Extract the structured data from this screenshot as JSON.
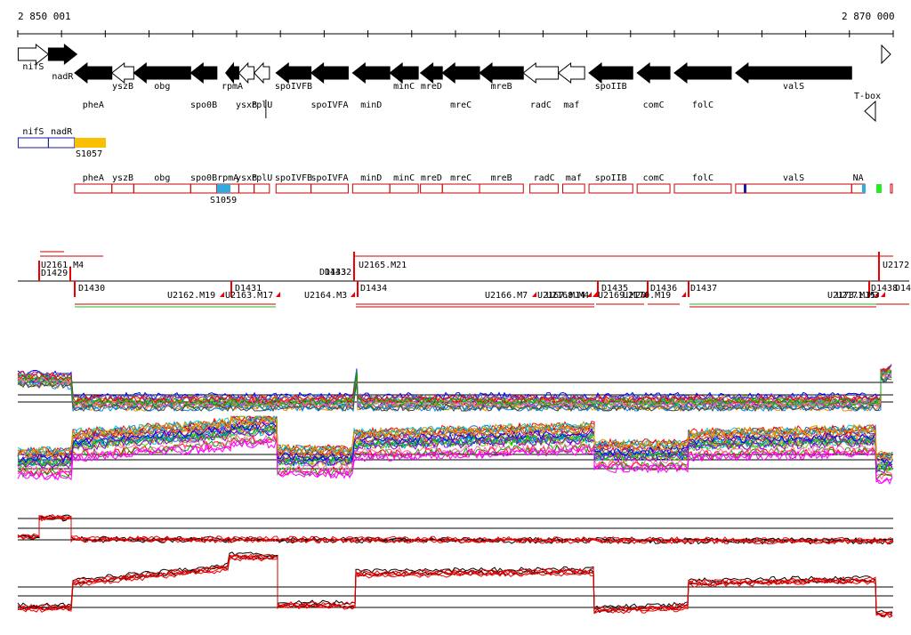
{
  "ruler": {
    "start_label": "2 850 001",
    "end_label": "2 870 000",
    "start": 2850001,
    "end": 2870000
  },
  "genes": [
    {
      "name": "nifS",
      "start": 2850010,
      "end": 2850700,
      "strand": "+",
      "fill": "white",
      "label_row": "above"
    },
    {
      "name": "nadR",
      "start": 2850700,
      "end": 2851350,
      "strand": "+",
      "fill": "black",
      "label_row": "below"
    },
    {
      "name": "pheA",
      "start": 2851300,
      "end": 2852150,
      "strand": "-",
      "fill": "black",
      "label_row": "bottom"
    },
    {
      "name": "yszB",
      "start": 2852150,
      "end": 2852650,
      "strand": "-",
      "fill": "white",
      "label_row": "below"
    },
    {
      "name": "obg",
      "start": 2852650,
      "end": 2853950,
      "strand": "-",
      "fill": "black",
      "label_row": "below"
    },
    {
      "name": "spo0B",
      "start": 2853950,
      "end": 2854550,
      "strand": "-",
      "fill": "black",
      "label_row": "bottom"
    },
    {
      "name": "rpmA",
      "start": 2854750,
      "end": 2855050,
      "strand": "-",
      "fill": "black",
      "label_row": "below"
    },
    {
      "name": "ysxB",
      "start": 2855050,
      "end": 2855400,
      "strand": "-",
      "fill": "white",
      "label_row": "bottom"
    },
    {
      "name": "rplU",
      "start": 2855400,
      "end": 2855750,
      "strand": "-",
      "fill": "white",
      "label_row": "lowest"
    },
    {
      "name": "spoIVFB",
      "start": 2855900,
      "end": 2856700,
      "strand": "-",
      "fill": "black",
      "label_row": "below"
    },
    {
      "name": "spoIVFA",
      "start": 2856700,
      "end": 2857550,
      "strand": "-",
      "fill": "black",
      "label_row": "bottom"
    },
    {
      "name": "minD",
      "start": 2857650,
      "end": 2858500,
      "strand": "-",
      "fill": "black",
      "label_row": "bottom"
    },
    {
      "name": "minC",
      "start": 2858500,
      "end": 2859150,
      "strand": "-",
      "fill": "black",
      "label_row": "below"
    },
    {
      "name": "mreD",
      "start": 2859200,
      "end": 2859700,
      "strand": "-",
      "fill": "black",
      "label_row": "below"
    },
    {
      "name": "mreC",
      "start": 2859700,
      "end": 2860550,
      "strand": "-",
      "fill": "black",
      "label_row": "bottom"
    },
    {
      "name": "mreB",
      "start": 2860550,
      "end": 2861550,
      "strand": "-",
      "fill": "black",
      "label_row": "below"
    },
    {
      "name": "radC",
      "start": 2861550,
      "end": 2862350,
      "strand": "-",
      "fill": "white",
      "label_row": "bottom"
    },
    {
      "name": "maf",
      "start": 2862350,
      "end": 2862950,
      "strand": "-",
      "fill": "white",
      "label_row": "bottom"
    },
    {
      "name": "spoIIB",
      "start": 2863050,
      "end": 2864050,
      "strand": "-",
      "fill": "black",
      "label_row": "below"
    },
    {
      "name": "comC",
      "start": 2864150,
      "end": 2864900,
      "strand": "-",
      "fill": "black",
      "label_row": "bottom"
    },
    {
      "name": "folC",
      "start": 2865000,
      "end": 2866300,
      "strand": "-",
      "fill": "black",
      "label_row": "bottom"
    },
    {
      "name": "valS",
      "start": 2866400,
      "end": 2869050,
      "strand": "-",
      "fill": "black",
      "label_row": "below"
    }
  ],
  "tbox": {
    "label": "T-box"
  },
  "extra_box": {
    "label": "S1057"
  },
  "segments": [
    {
      "name": "nifS",
      "start": 2850010,
      "end": 2850700,
      "color": "#1a1aa6"
    },
    {
      "name": "nadR",
      "start": 2850700,
      "end": 2851300,
      "color": "#1a1aa6"
    }
  ],
  "annot_row": [
    {
      "name": "pheA",
      "start": 2851300,
      "end": 2852150
    },
    {
      "name": "yszB",
      "start": 2852150,
      "end": 2852650
    },
    {
      "name": "obg",
      "start": 2852650,
      "end": 2853950
    },
    {
      "name": "spo0B",
      "start": 2853950,
      "end": 2854550
    },
    {
      "name": "rpmA",
      "start": 2854550,
      "end": 2855050
    },
    {
      "name": "ysxB",
      "start": 2855050,
      "end": 2855400
    },
    {
      "name": "rplU",
      "start": 2855400,
      "end": 2855750
    },
    {
      "name": "spoIVFB",
      "start": 2855900,
      "end": 2856700
    },
    {
      "name": "spoIVFA",
      "start": 2856700,
      "end": 2857550
    },
    {
      "name": "minD",
      "start": 2857650,
      "end": 2858500
    },
    {
      "name": "minC",
      "start": 2858500,
      "end": 2859150
    },
    {
      "name": "mreD",
      "start": 2859200,
      "end": 2859700
    },
    {
      "name": "mreC",
      "start": 2859700,
      "end": 2860550
    },
    {
      "name": "mreB",
      "start": 2860550,
      "end": 2861550
    },
    {
      "name": "radC",
      "start": 2861700,
      "end": 2862350
    },
    {
      "name": "maf",
      "start": 2862450,
      "end": 2862950
    },
    {
      "name": "spoIIB",
      "start": 2863050,
      "end": 2864050
    },
    {
      "name": "comC",
      "start": 2864150,
      "end": 2864900
    },
    {
      "name": "folC",
      "start": 2865000,
      "end": 2866300
    },
    {
      "name": "valS",
      "start": 2866400,
      "end": 2869050
    },
    {
      "name": "NA",
      "start": 2869050,
      "end": 2869350
    }
  ],
  "s1059": {
    "label": "S1059"
  },
  "transcripts_upper": [
    {
      "name": "U2161.M4"
    },
    {
      "name": "D1429"
    },
    {
      "name": "D1433"
    },
    {
      "name": "D1432"
    },
    {
      "name": "U2165.M21"
    },
    {
      "name": "U2172"
    }
  ],
  "transcripts_lower": [
    {
      "name": "D1430"
    },
    {
      "name": "U2162.M19"
    },
    {
      "name": "D1431"
    },
    {
      "name": "U2163.M17"
    },
    {
      "name": "U2164.M3"
    },
    {
      "name": "D1434"
    },
    {
      "name": "U2166.M7"
    },
    {
      "name": "U2167.M14"
    },
    {
      "name": "U2168.M4"
    },
    {
      "name": "D1435"
    },
    {
      "name": "U2169.M20"
    },
    {
      "name": "D1436"
    },
    {
      "name": "U2170.M19"
    },
    {
      "name": "D1437"
    },
    {
      "name": "U2173.M15"
    },
    {
      "name": "U2171.M3"
    },
    {
      "name": "D1438"
    },
    {
      "name": "D14"
    }
  ],
  "colors": {
    "gene_black": "#000000",
    "annot_red": "#cc0000",
    "marker_red": "#ee0000",
    "green_bar": "#22bb22",
    "yellow_box": "#f8c000",
    "cyan_box": "#33aadd",
    "navy": "#1a1aa6"
  }
}
